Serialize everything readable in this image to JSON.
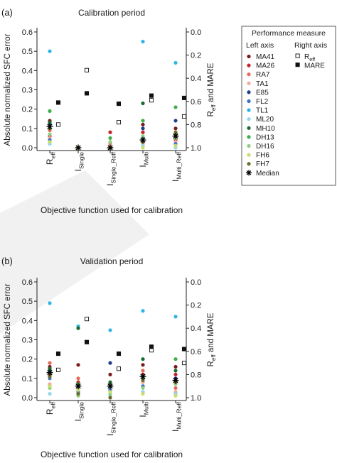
{
  "legend": {
    "title": "Performance measure",
    "left_heading": "Left axis",
    "right_heading": "Right axis",
    "left_items": [
      {
        "label": "MA41",
        "color": "#7a1c1c",
        "marker": "dot"
      },
      {
        "label": "MA26",
        "color": "#c0282d",
        "marker": "dot"
      },
      {
        "label": "RA7",
        "color": "#e8685a",
        "marker": "dot"
      },
      {
        "label": "TA1",
        "color": "#f2a99b",
        "marker": "dot"
      },
      {
        "label": "E85",
        "color": "#1f3f8a",
        "marker": "dot"
      },
      {
        "label": "FL2",
        "color": "#3c73c8",
        "marker": "dot"
      },
      {
        "label": "TL1",
        "color": "#2fb5e3",
        "marker": "dot"
      },
      {
        "label": "ML20",
        "color": "#93d6ef",
        "marker": "dot"
      },
      {
        "label": "MH10",
        "color": "#1b6b2f",
        "marker": "dot"
      },
      {
        "label": "DH13",
        "color": "#3fae49",
        "marker": "dot"
      },
      {
        "label": "DH16",
        "color": "#8fcf7f",
        "marker": "dot"
      },
      {
        "label": "FH6",
        "color": "#c8dd6a",
        "marker": "dot"
      },
      {
        "label": "FH7",
        "color": "#6b6b2a",
        "marker": "dot"
      },
      {
        "label": "Median",
        "color": "#000000",
        "marker": "star"
      }
    ],
    "right_items": [
      {
        "label": "R",
        "sub": "eff",
        "marker": "open-square"
      },
      {
        "label": "MARE",
        "marker": "filled-square"
      }
    ]
  },
  "chart_data": [
    {
      "type": "scatter",
      "panel_label": "(a)",
      "title": "Calibration period",
      "xlabel": "Objective function used for calibration",
      "ylabel": "Absolute normalized SFC error",
      "y2label": "R_eff and MARE",
      "ylim": [
        0,
        0.6
      ],
      "y2lim": [
        1.0,
        0.0
      ],
      "y2_inverted": true,
      "yticks": [
        "0.0",
        "0.1",
        "0.2",
        "0.3",
        "0.4",
        "0.5",
        "0.6"
      ],
      "y2ticks": [
        "0.0",
        "0.2",
        "0.4",
        "0.6",
        "0.8",
        "1.0"
      ],
      "categories": [
        {
          "main": "R",
          "sub": "eff"
        },
        {
          "main": "I",
          "sub": "Single"
        },
        {
          "main": "I",
          "sub": "Single_Reff"
        },
        {
          "main": "I",
          "sub": "Multi"
        },
        {
          "main": "I",
          "sub": "Multi_Reff"
        }
      ],
      "series": [
        {
          "name": "MA41",
          "values": [
            0.14,
            0.0,
            0.0,
            0.12,
            0.1
          ]
        },
        {
          "name": "MA26",
          "values": [
            0.06,
            0.0,
            0.08,
            0.08,
            0.04
          ]
        },
        {
          "name": "RA7",
          "values": [
            0.09,
            0.0,
            0.02,
            0.04,
            0.06
          ]
        },
        {
          "name": "TA1",
          "values": [
            0.05,
            0.0,
            0.01,
            0.02,
            0.03
          ]
        },
        {
          "name": "E85",
          "values": [
            0.12,
            0.0,
            0.0,
            0.1,
            0.14
          ]
        },
        {
          "name": "FL2",
          "values": [
            0.04,
            0.0,
            0.0,
            0.05,
            0.02
          ]
        },
        {
          "name": "TL1",
          "values": [
            0.5,
            0.0,
            0.0,
            0.55,
            0.44
          ]
        },
        {
          "name": "ML20",
          "values": [
            0.02,
            0.0,
            0.0,
            0.01,
            0.0
          ]
        },
        {
          "name": "MH10",
          "values": [
            0.13,
            0.0,
            0.0,
            0.23,
            0.07
          ]
        },
        {
          "name": "DH13",
          "values": [
            0.19,
            0.0,
            0.05,
            0.14,
            0.21
          ]
        },
        {
          "name": "DH16",
          "values": [
            0.07,
            0.0,
            0.03,
            0.06,
            0.05
          ]
        },
        {
          "name": "FH6",
          "values": [
            0.03,
            0.0,
            0.0,
            0.0,
            0.01
          ]
        },
        {
          "name": "FH7",
          "values": [
            0.1,
            0.0,
            0.0,
            0.03,
            0.08
          ]
        },
        {
          "name": "Median",
          "values": [
            0.11,
            0.0,
            0.0,
            0.04,
            0.06
          ]
        }
      ],
      "right_series": [
        {
          "name": "R_eff",
          "values": [
            0.8,
            0.33,
            0.78,
            0.59,
            0.73
          ]
        },
        {
          "name": "MARE",
          "values": [
            0.61,
            0.53,
            0.62,
            0.55,
            0.57
          ]
        }
      ]
    },
    {
      "type": "scatter",
      "panel_label": "(b)",
      "title": "Validation period",
      "xlabel": "Objective function used for calibration",
      "ylabel": "Absolute normalized SFC error",
      "y2label": "R_eff and MARE",
      "ylim": [
        0,
        0.6
      ],
      "y2lim": [
        1.0,
        0.0
      ],
      "y2_inverted": true,
      "yticks": [
        "0.0",
        "0.1",
        "0.2",
        "0.3",
        "0.4",
        "0.5",
        "0.6"
      ],
      "y2ticks": [
        "0.0",
        "0.2",
        "0.4",
        "0.6",
        "0.8",
        "1.0"
      ],
      "categories": [
        {
          "main": "R",
          "sub": "eff"
        },
        {
          "main": "I",
          "sub": "Single"
        },
        {
          "main": "I",
          "sub": "Single_Reff"
        },
        {
          "main": "I",
          "sub": "Multi"
        },
        {
          "main": "I",
          "sub": "Multi_Reff"
        }
      ],
      "series": [
        {
          "name": "MA41",
          "values": [
            0.16,
            0.17,
            0.12,
            0.17,
            0.16
          ]
        },
        {
          "name": "MA26",
          "values": [
            0.12,
            0.08,
            0.06,
            0.12,
            0.12
          ]
        },
        {
          "name": "RA7",
          "values": [
            0.18,
            0.1,
            0.07,
            0.14,
            0.05
          ]
        },
        {
          "name": "TA1",
          "values": [
            0.07,
            0.05,
            0.04,
            0.08,
            0.03
          ]
        },
        {
          "name": "E85",
          "values": [
            0.14,
            0.06,
            0.18,
            0.1,
            0.1
          ]
        },
        {
          "name": "FL2",
          "values": [
            0.1,
            0.03,
            0.04,
            0.06,
            0.02
          ]
        },
        {
          "name": "TL1",
          "values": [
            0.49,
            0.37,
            0.35,
            0.45,
            0.42
          ]
        },
        {
          "name": "ML20",
          "values": [
            0.02,
            0.02,
            0.01,
            0.03,
            0.02
          ]
        },
        {
          "name": "MH10",
          "values": [
            0.15,
            0.36,
            0.08,
            0.2,
            0.14
          ]
        },
        {
          "name": "DH13",
          "values": [
            0.13,
            0.07,
            0.06,
            0.11,
            0.2
          ]
        },
        {
          "name": "DH16",
          "values": [
            0.05,
            0.01,
            0.02,
            0.05,
            0.07
          ]
        },
        {
          "name": "FH6",
          "values": [
            0.06,
            0.04,
            0.03,
            0.02,
            0.01
          ]
        },
        {
          "name": "FH7",
          "values": [
            0.11,
            0.02,
            0.0,
            0.09,
            0.08
          ]
        },
        {
          "name": "Median",
          "values": [
            0.13,
            0.06,
            0.06,
            0.11,
            0.09
          ]
        }
      ],
      "right_series": [
        {
          "name": "R_eff",
          "values": [
            0.76,
            0.32,
            0.75,
            0.59,
            0.7
          ]
        },
        {
          "name": "MARE",
          "values": [
            0.62,
            0.52,
            0.62,
            0.56,
            0.58
          ]
        }
      ]
    }
  ]
}
